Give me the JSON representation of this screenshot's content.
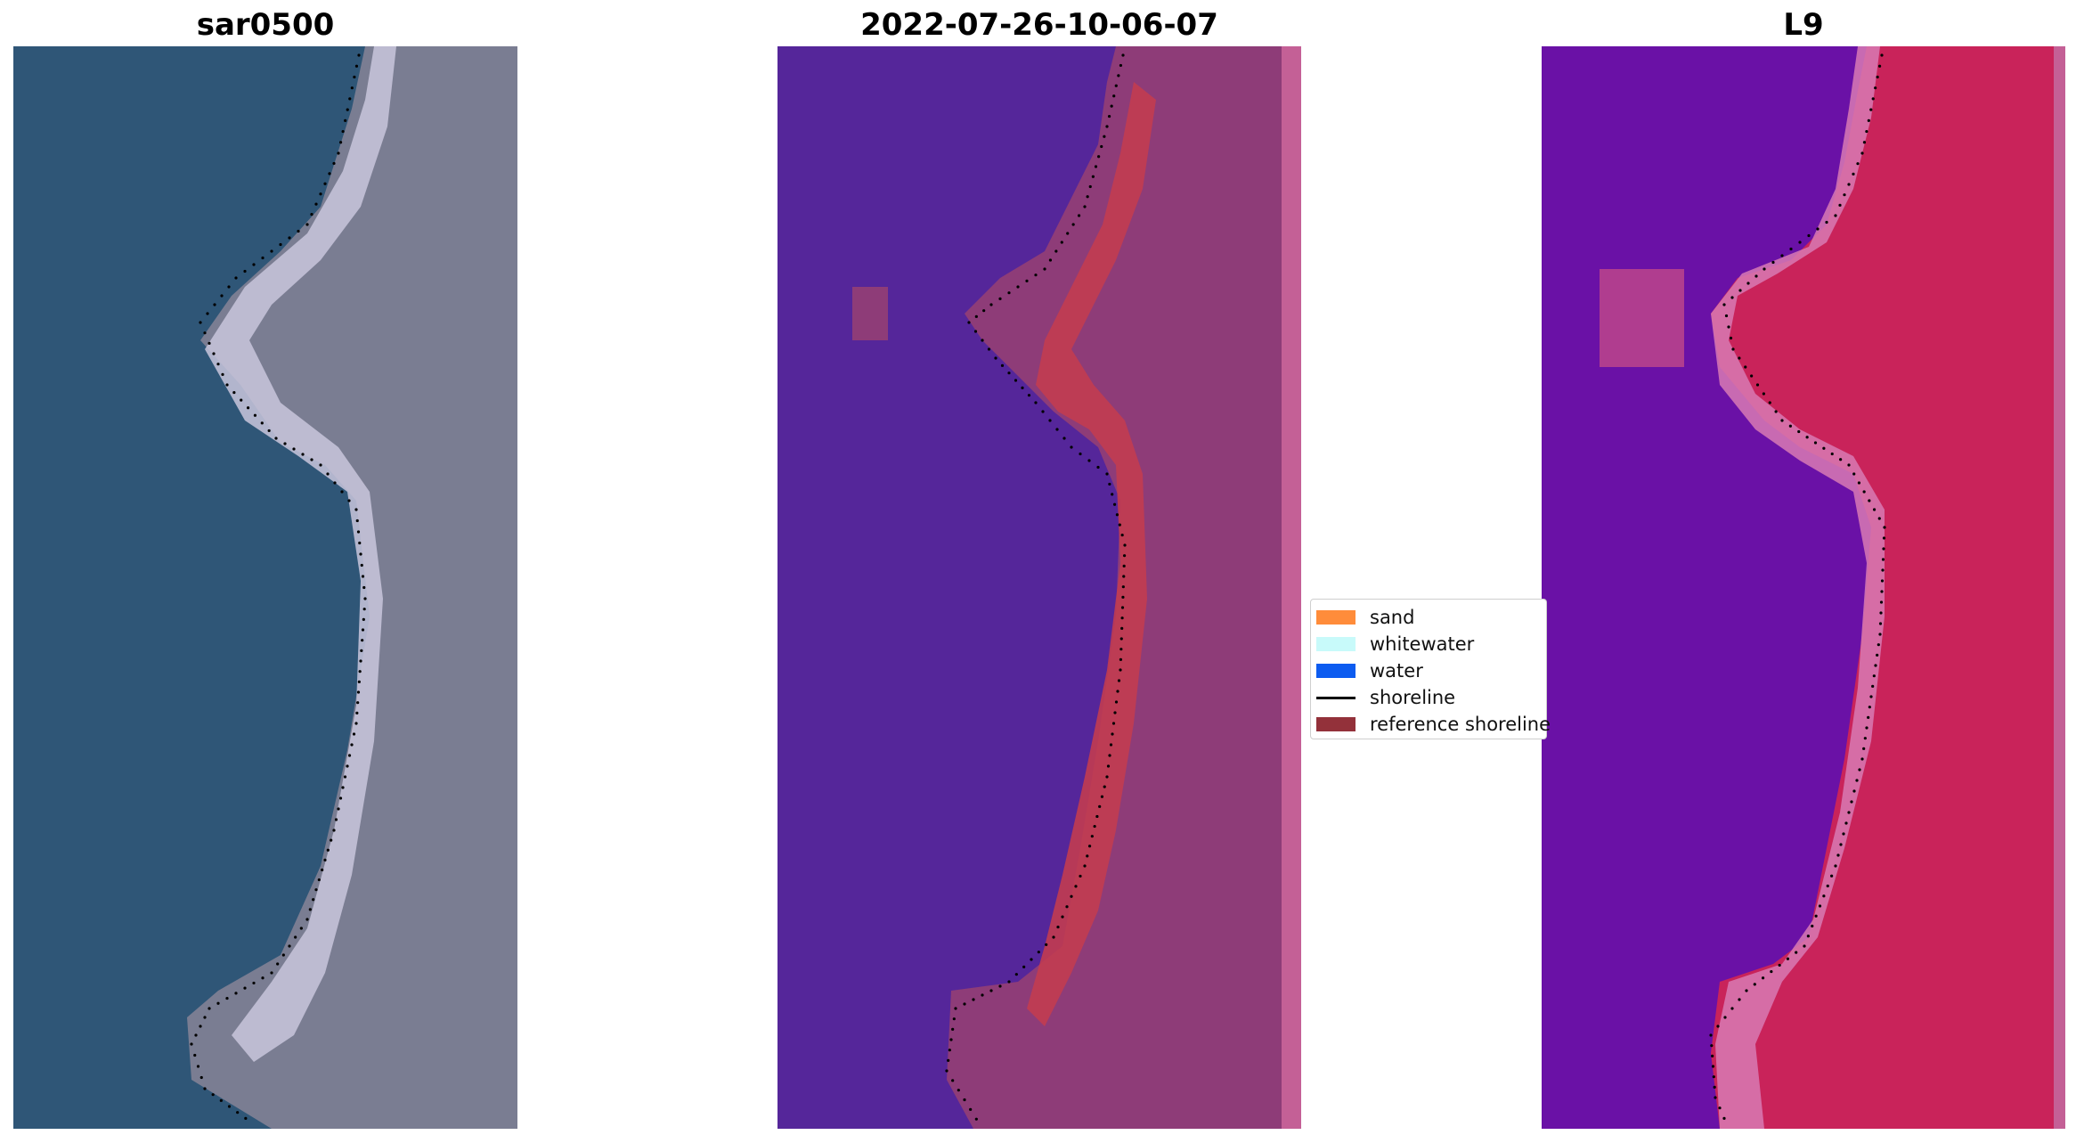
{
  "panels": [
    {
      "id": "rgb",
      "title": "sar0500"
    },
    {
      "id": "classified",
      "title": "2022-07-26-10-06-07"
    },
    {
      "id": "index",
      "title": "L9"
    }
  ],
  "legend": {
    "items": [
      {
        "label": "sand",
        "color": "#ff8c3a",
        "kind": "patch"
      },
      {
        "label": "whitewater",
        "color": "#c8fafa",
        "kind": "patch"
      },
      {
        "label": "water",
        "color": "#0d5cf0",
        "kind": "patch"
      },
      {
        "label": "shoreline",
        "color": "#000000",
        "kind": "line"
      },
      {
        "label": "reference shoreline",
        "color": "#93313a",
        "kind": "patch"
      }
    ]
  },
  "colors": {
    "rgb_water": "#2f5677",
    "rgb_land": "#7a7d92",
    "rgb_beach": "#c9c6dc",
    "class_water": "#55269a",
    "class_land": "#8e3c78",
    "class_sand": "#c23c50",
    "class_edge": "#c46096",
    "index_water": "#6a11a6",
    "index_land": "#c9235a",
    "index_beach": "#d87ab4",
    "shoreline_dots": "#000000"
  }
}
